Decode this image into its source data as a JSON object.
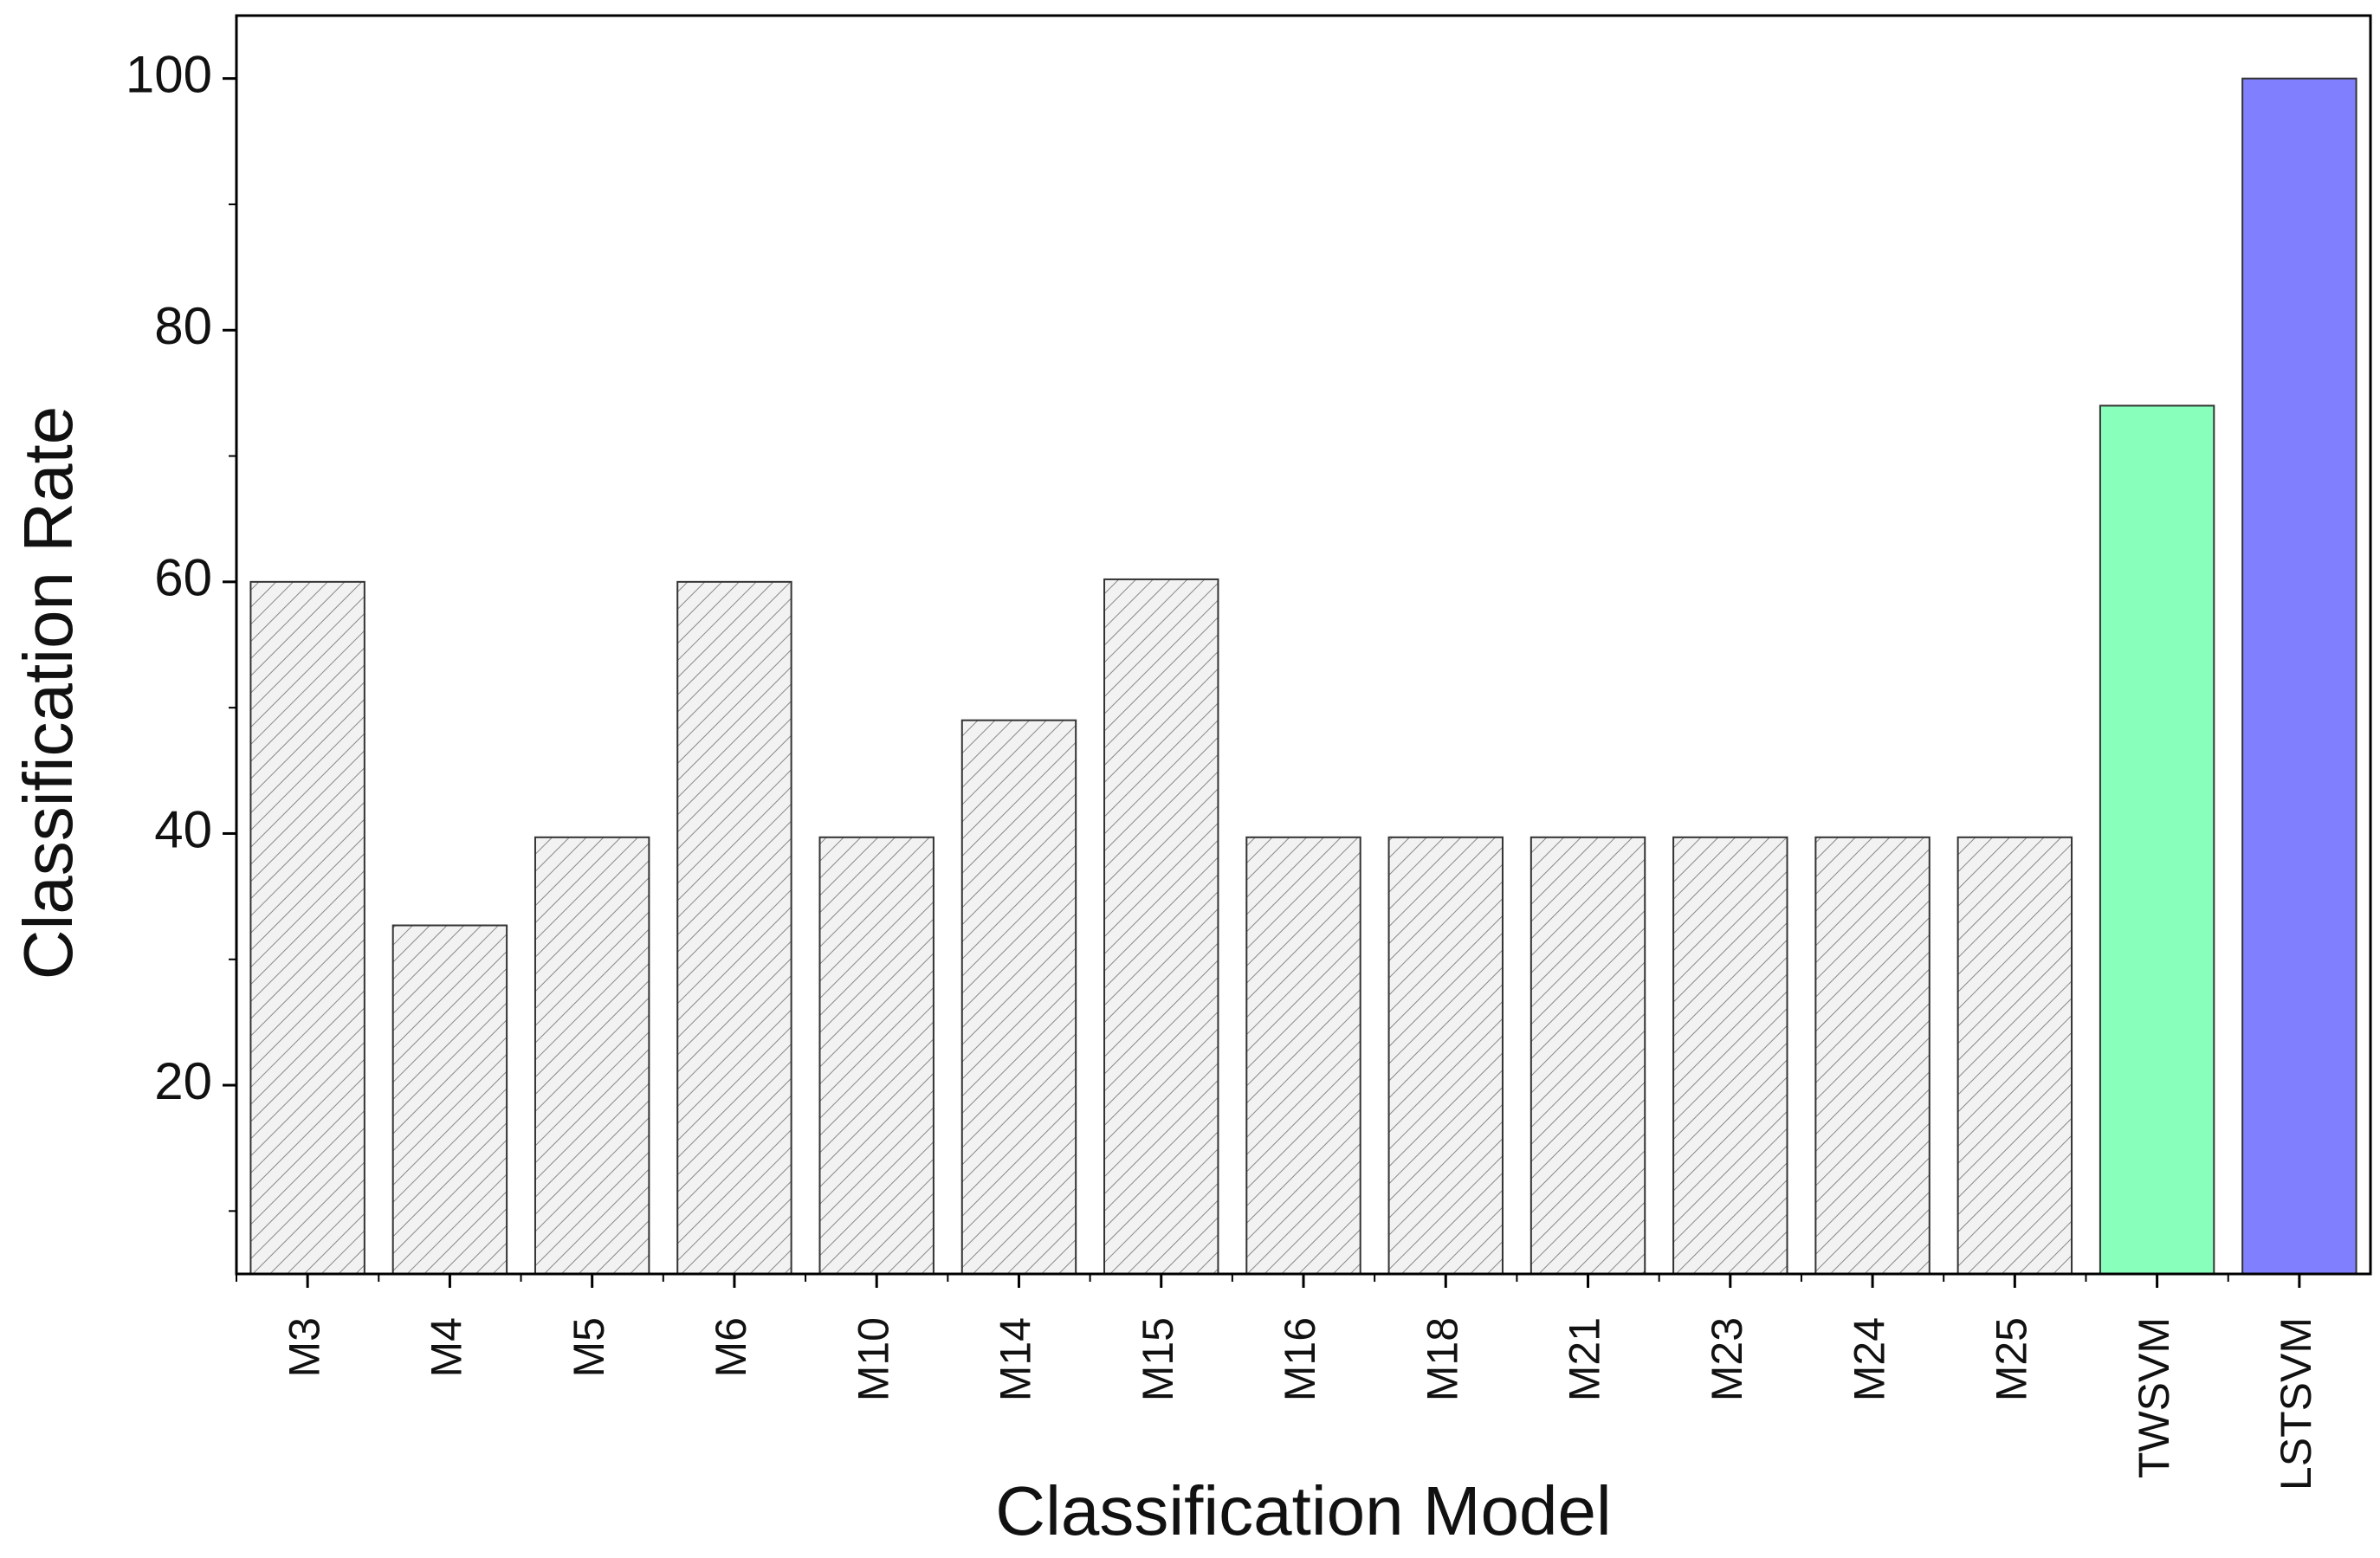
{
  "chart_data": {
    "type": "bar",
    "x_label": "Classification Model",
    "y_label": "Classification Rate",
    "categories": [
      "M3",
      "M4",
      "M5",
      "M6",
      "M10",
      "M14",
      "M15",
      "M16",
      "M18",
      "M21",
      "M23",
      "M24",
      "M25",
      "TWSVM",
      "LSTSVM"
    ],
    "values": [
      60,
      32.7,
      39.7,
      60,
      39.7,
      49,
      60.2,
      39.7,
      39.7,
      39.7,
      39.7,
      39.7,
      39.7,
      74,
      100
    ],
    "colors": [
      "#ececec",
      "#ececec",
      "#ececec",
      "#ececec",
      "#ececec",
      "#ececec",
      "#ececec",
      "#ececec",
      "#ececec",
      "#ececec",
      "#ececec",
      "#ececec",
      "#ececec",
      "#88ffbb",
      "#8080ff"
    ],
    "hatched": [
      true,
      true,
      true,
      true,
      true,
      true,
      true,
      true,
      true,
      true,
      true,
      true,
      true,
      false,
      false
    ],
    "ylim": [
      5,
      105
    ],
    "yticks": [
      20,
      40,
      60,
      80,
      100
    ],
    "minor_yticks": [
      10,
      30,
      50,
      70,
      90
    ],
    "grid": false
  }
}
